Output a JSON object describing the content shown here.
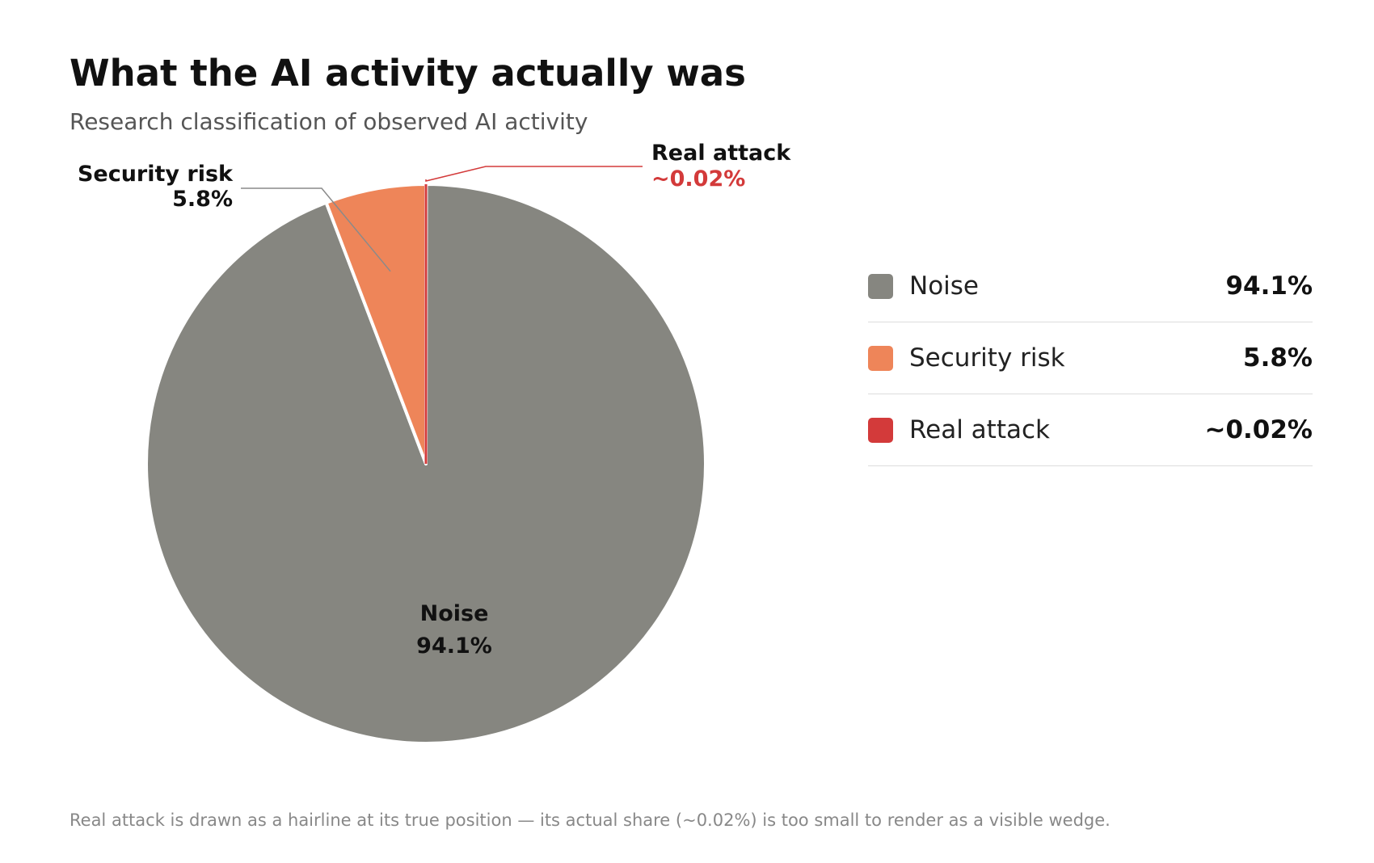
{
  "header": {
    "title": "What the AI activity actually was",
    "subtitle": "Research classification of observed AI activity"
  },
  "chart_data": {
    "type": "pie",
    "title": "What the AI activity actually was",
    "subtitle": "Research classification of observed AI activity",
    "start_angle": "12 o'clock",
    "direction": "clockwise",
    "slices": [
      {
        "name": "Noise",
        "value": 94.1,
        "value_label": "94.1%",
        "color": "#868680"
      },
      {
        "name": "Security risk",
        "value": 5.8,
        "value_label": "5.8%",
        "color": "#EE8559"
      },
      {
        "name": "Real attack",
        "value": 0.02,
        "value_label": "~0.02%",
        "color": "#D33A3A",
        "rendered_as": "hairline"
      }
    ],
    "legend_placement": "right"
  },
  "footnote": "Real attack is drawn as a hairline at its true position — its actual share (~0.02%) is too small to render as a visible wedge."
}
